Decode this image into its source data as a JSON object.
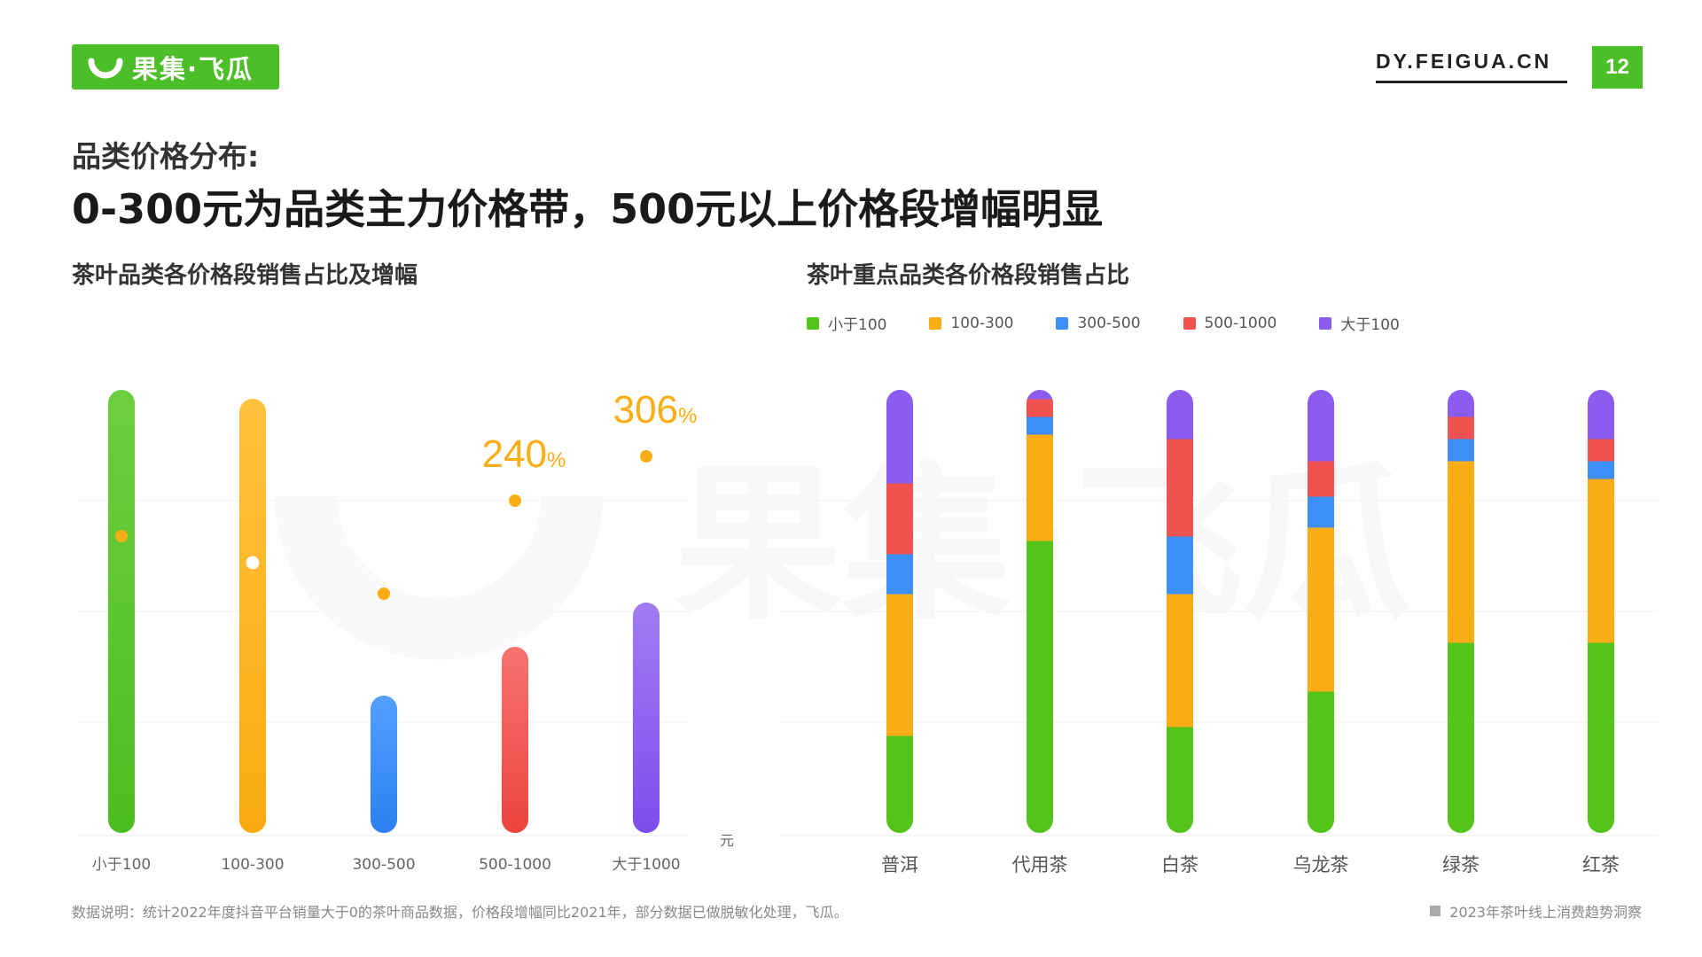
{
  "header": {
    "logo_text": "果集·飞瓜",
    "site": "DY.FEIGUA.CN",
    "page_number": "12"
  },
  "title": {
    "line1": "品类价格分布:",
    "line2": "0-300元为品类主力价格带，500元以上价格段增幅明显"
  },
  "watermark": "果集·飞瓜",
  "colors": {
    "brand": "#4cbe28",
    "green": "#52c41a",
    "orange": "#faad14",
    "blue": "#3d8ff7",
    "red": "#f0524f",
    "purple": "#8c5cf0"
  },
  "chart_data": [
    {
      "type": "bar",
      "title": "茶叶品类各价格段销售占比及增幅",
      "categories": [
        "小于100",
        "100-300",
        "300-500",
        "500-1000",
        "大于1000"
      ],
      "values": [
        100,
        98,
        31,
        42,
        52
      ],
      "growth_dots": [
        67,
        61,
        54,
        75,
        85
      ],
      "growth_labels": [
        "",
        "",
        "",
        "240",
        "306"
      ],
      "growth_suffix": "%",
      "xlabel": "元",
      "ylim": [
        0,
        100
      ]
    },
    {
      "type": "bar",
      "stacked": true,
      "title": "茶叶重点品类各价格段销售占比",
      "categories": [
        "普洱",
        "代用茶",
        "白茶",
        "乌龙茶",
        "绿茶",
        "红茶"
      ],
      "series": [
        {
          "name": "小于100",
          "values": [
            22,
            66,
            24,
            32,
            43,
            43
          ]
        },
        {
          "name": "100-300",
          "values": [
            32,
            24,
            30,
            37,
            41,
            37
          ]
        },
        {
          "name": "300-500",
          "values": [
            9,
            4,
            13,
            7,
            5,
            4
          ]
        },
        {
          "name": "500-1000",
          "values": [
            16,
            4,
            22,
            8,
            5,
            5
          ]
        },
        {
          "name": "大于100",
          "values": [
            21,
            2,
            11,
            16,
            6,
            11
          ]
        }
      ],
      "ylim": [
        0,
        100
      ]
    }
  ],
  "footer": {
    "note": "数据说明：统计2022年度抖音平台销量大于0的茶叶商品数据，价格段增幅同比2021年，部分数据已做脱敏化处理，飞瓜。",
    "report": "2023年茶叶线上消费趋势洞察"
  }
}
